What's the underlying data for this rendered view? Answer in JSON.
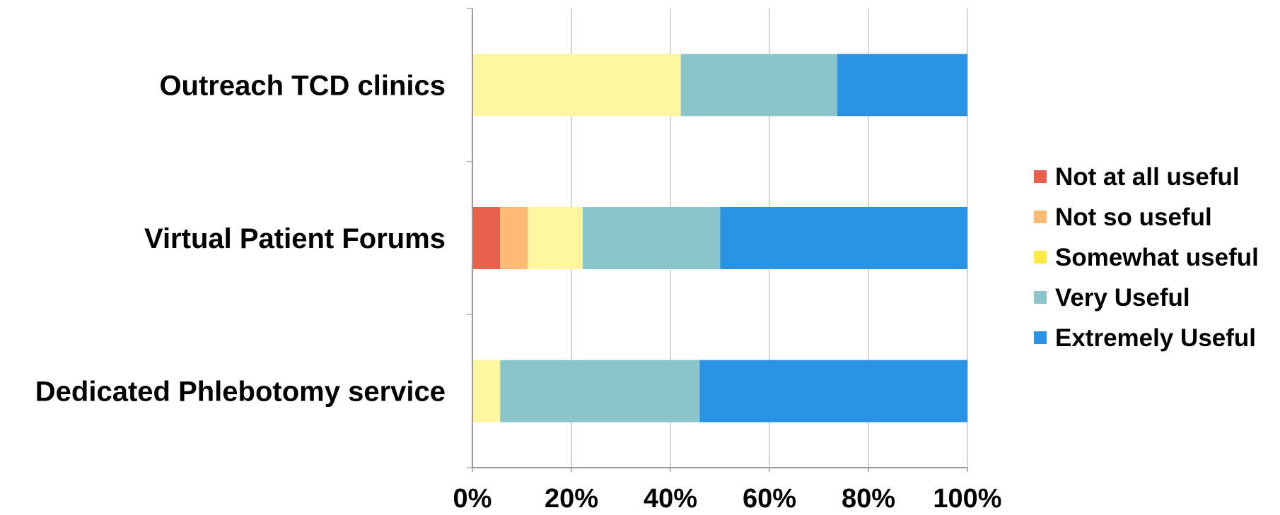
{
  "chart_data": {
    "type": "bar",
    "orientation": "horizontal",
    "stacked": "percent",
    "categories": [
      "Outreach TCD clinics",
      "Virtual Patient Forums",
      "Dedicated Phlebotomy service"
    ],
    "series": [
      {
        "name": "Not at all useful",
        "color": "#e8604c",
        "values": [
          0,
          5.6,
          0
        ]
      },
      {
        "name": "Not so useful",
        "color": "#fdba74",
        "values": [
          0,
          5.6,
          0
        ]
      },
      {
        "name": "Somewhat useful",
        "color": "#fdf5a0",
        "legend_color": "#fde84a",
        "values": [
          42.1,
          11.1,
          5.6
        ]
      },
      {
        "name": "Very Useful",
        "color": "#8bc5cc",
        "values": [
          31.6,
          27.8,
          40.3
        ]
      },
      {
        "name": "Extremely Useful",
        "color": "#2a92e2",
        "values": [
          26.3,
          50.0,
          54.1
        ]
      }
    ],
    "x_ticks": [
      "0%",
      "20%",
      "40%",
      "60%",
      "80%",
      "100%"
    ],
    "xlim": [
      0,
      100
    ],
    "grid": "vertical",
    "legend": "right",
    "title": "",
    "xlabel": "",
    "ylabel": ""
  }
}
